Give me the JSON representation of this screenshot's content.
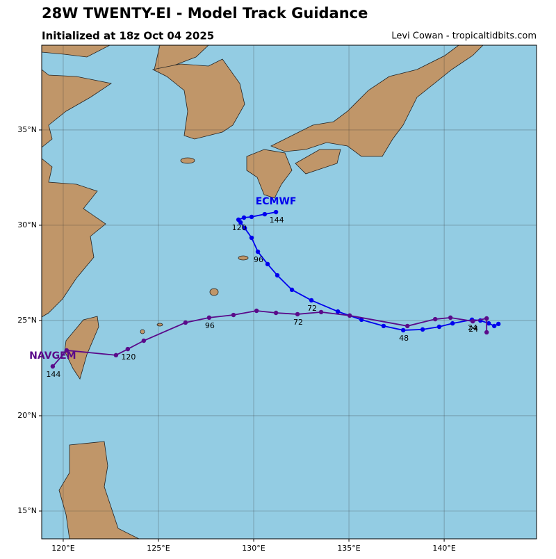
{
  "chart_data": {
    "type": "track",
    "title": "28W TWENTY-EI - Model Track Guidance",
    "subtitle": "Initialized at 18z Oct 04 2025",
    "credit": "Levi Cowan - tropicaltidbits.com",
    "xlim": [
      118.87,
      144.85
    ],
    "ylim": [
      13.54,
      39.45
    ],
    "xticks": [
      {
        "value": 120,
        "label": "120°E"
      },
      {
        "value": 125,
        "label": "125°E"
      },
      {
        "value": 130,
        "label": "130°E"
      },
      {
        "value": 135,
        "label": "135°E"
      },
      {
        "value": 140,
        "label": "140°E"
      }
    ],
    "yticks": [
      {
        "value": 15,
        "label": "15°N"
      },
      {
        "value": 20,
        "label": "20°N"
      },
      {
        "value": 25,
        "label": "25°N"
      },
      {
        "value": 30,
        "label": "30°N"
      },
      {
        "value": 35,
        "label": "35°N"
      }
    ],
    "grid": true,
    "series": [
      {
        "name": "ECMWF",
        "color": "#0000ee",
        "x": [
          142.85,
          142.63,
          142.34,
          141.9,
          141.46,
          140.44,
          139.74,
          138.87,
          137.85,
          136.82,
          135.66,
          134.42,
          133.03,
          132.01,
          131.24,
          130.73,
          130.22,
          129.89,
          129.53,
          129.31,
          129.2,
          129.49,
          129.89,
          130.58,
          131.17
        ],
        "values": [
          24.82,
          24.71,
          24.85,
          25.0,
          25.04,
          24.85,
          24.67,
          24.53,
          24.49,
          24.71,
          25.04,
          25.47,
          26.06,
          26.61,
          27.37,
          27.96,
          28.61,
          29.34,
          29.85,
          30.15,
          30.29,
          30.4,
          30.44,
          30.58,
          30.69
        ],
        "point_labels": [
          null,
          null,
          null,
          null,
          "24",
          null,
          null,
          null,
          "48",
          null,
          null,
          null,
          "72",
          null,
          null,
          null,
          "96",
          null,
          null,
          null,
          "120",
          null,
          null,
          null,
          "144"
        ]
      },
      {
        "name": "NAVGEM",
        "color": "#5a0a8a",
        "x": [
          142.23,
          142.23,
          141.5,
          140.33,
          139.53,
          138.07,
          135.04,
          133.54,
          132.3,
          131.17,
          130.15,
          128.94,
          127.66,
          126.42,
          124.23,
          123.39,
          122.77,
          120.18,
          119.45
        ],
        "values": [
          24.38,
          25.11,
          24.96,
          25.15,
          25.07,
          24.71,
          25.26,
          25.44,
          25.33,
          25.4,
          25.51,
          25.29,
          25.15,
          24.89,
          23.94,
          23.5,
          23.18,
          23.43,
          22.59
        ],
        "point_labels": [
          null,
          null,
          "24",
          null,
          null,
          null,
          null,
          null,
          "72",
          null,
          null,
          null,
          "96",
          null,
          null,
          "120",
          null,
          null,
          "144"
        ]
      }
    ]
  }
}
